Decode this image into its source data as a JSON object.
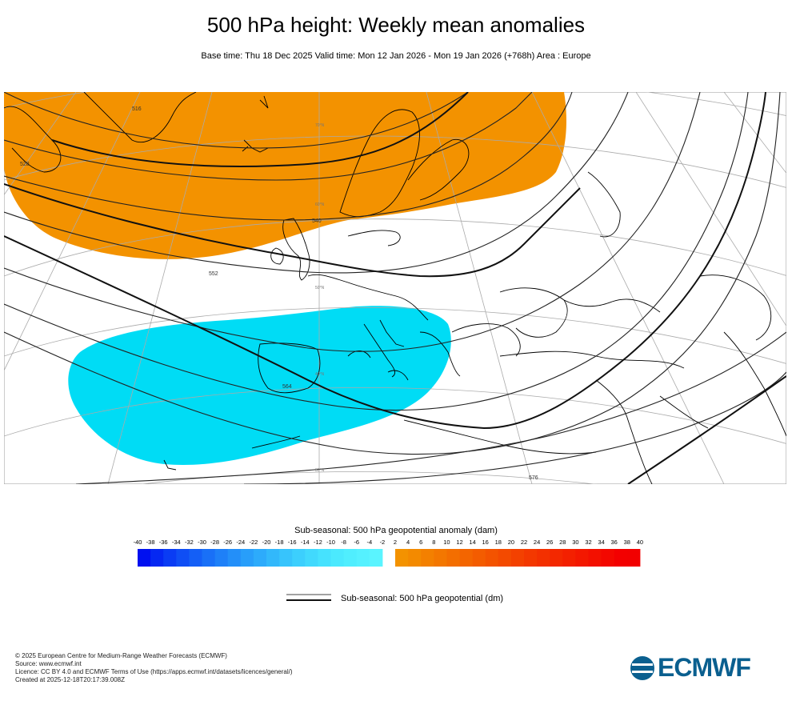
{
  "header": {
    "title": "500 hPa height: Weekly mean anomalies",
    "subtitle": "Base time: Thu 18 Dec 2025 Valid time: Mon 12 Jan 2026 - Mon 19 Jan 2026 (+768h) Area : Europe"
  },
  "map": {
    "contour_labels": [
      "516",
      "528",
      "540",
      "552",
      "564",
      "576"
    ],
    "latitude_labels": [
      "70°N",
      "60°N",
      "50°N",
      "40°N",
      "30°N"
    ],
    "colors": {
      "positive_anomaly": "#f39200",
      "negative_anomaly": "#00dcf5",
      "contour": "#222222",
      "coastline": "#000000"
    }
  },
  "colorbar": {
    "title": "Sub-seasonal: 500 hPa geopotential anomaly (dam)",
    "ticks": [
      "-40",
      "-38",
      "-36",
      "-34",
      "-32",
      "-30",
      "-28",
      "-26",
      "-24",
      "-22",
      "-20",
      "-18",
      "-16",
      "-14",
      "-12",
      "-10",
      "-8",
      "-6",
      "-4",
      "-2",
      "2",
      "4",
      "6",
      "8",
      "10",
      "12",
      "14",
      "16",
      "18",
      "20",
      "22",
      "24",
      "26",
      "28",
      "30",
      "32",
      "34",
      "36",
      "38",
      "40"
    ],
    "negative_colors": [
      "#0010f0",
      "#0528f2",
      "#0a3cf4",
      "#0f4ef5",
      "#145ff6",
      "#1970f7",
      "#1e80f8",
      "#238ff9",
      "#289efa",
      "#2dabfb",
      "#32b8fb",
      "#37c4fc",
      "#3ccffd",
      "#41d9fd",
      "#46e2fe",
      "#4be9fe",
      "#50eefe",
      "#55f1ff",
      "#5af4ff"
    ],
    "positive_colors": [
      "#f39200",
      "#f38a00",
      "#f38000",
      "#f37700",
      "#f36e00",
      "#f36500",
      "#f35c00",
      "#f35300",
      "#f34a00",
      "#f34100",
      "#f33800",
      "#f33000",
      "#f32800",
      "#f32000",
      "#f31800",
      "#f31000",
      "#f30800",
      "#f30000",
      "#f20000"
    ]
  },
  "legend": {
    "label": "Sub-seasonal: 500 hPa geopotential (dm)"
  },
  "footer": {
    "lines": [
      "© 2025 European Centre for Medium-Range Weather Forecasts (ECMWF)",
      "Source: www.ecmwf.int",
      "Licence: CC BY 4.0 and ECMWF Terms of Use (https://apps.ecmwf.int/datasets/licences/general/)",
      "Created at 2025-12-18T20:17:39.008Z"
    ]
  },
  "logo": {
    "text": "ECMWF",
    "color": "#0a5f8f"
  }
}
